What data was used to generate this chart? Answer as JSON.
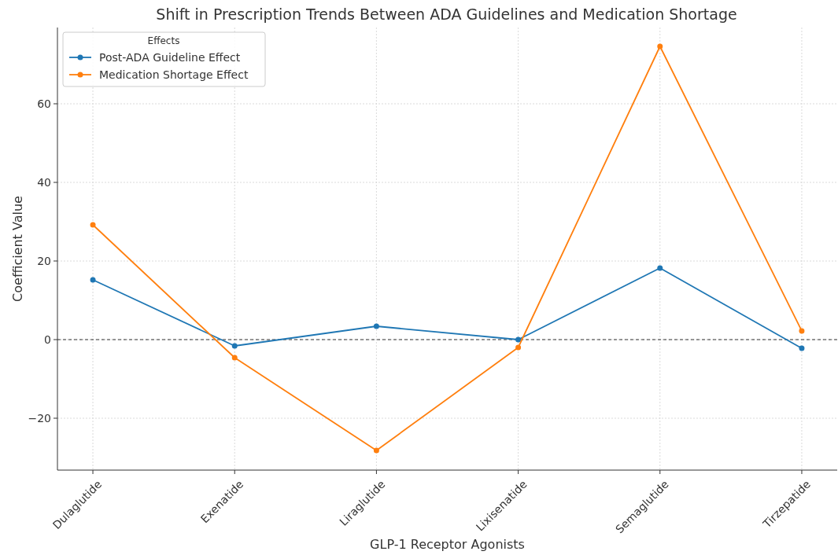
{
  "chart_data": {
    "type": "line",
    "title": "Shift in Prescription Trends Between ADA Guidelines and Medication Shortage",
    "xlabel": "GLP-1 Receptor Agonists",
    "ylabel": "Coefficient Value",
    "legend_title": "Effects",
    "categories": [
      "Dulaglutide",
      "Exenatide",
      "Liraglutide",
      "Lixisenatide",
      "Semaglutide",
      "Tirzepatide"
    ],
    "series": [
      {
        "name": "Post-ADA Guideline Effect",
        "color": "#1f77b4",
        "values": [
          15.2,
          -1.6,
          3.4,
          0,
          18.2,
          -2.2
        ]
      },
      {
        "name": "Medication Shortage Effect",
        "color": "#ff7f0e",
        "values": [
          29.2,
          -4.6,
          -28.2,
          -2,
          74.6,
          2.2
        ]
      }
    ],
    "ylim": [
      -33.2,
      79.4
    ],
    "yticks": [
      {
        "value": -20,
        "label": "−20"
      },
      0,
      20,
      40,
      60
    ],
    "ref_lines": [
      {
        "axis": "y",
        "value": 0,
        "color": "#333333",
        "line_style": "dashed"
      }
    ],
    "grid": true,
    "legend": "top left",
    "marker": "circle",
    "line_style": "solid"
  }
}
